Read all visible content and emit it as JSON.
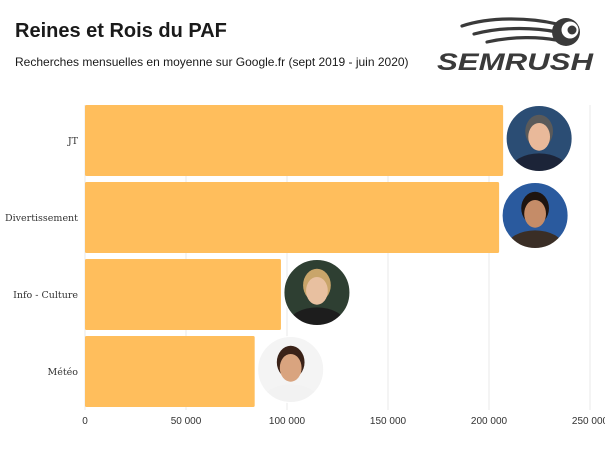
{
  "header": {
    "title": "Reines et Rois du PAF",
    "subtitle": "Recherches mensuelles en moyenne sur Google.fr (sept 2019 - juin 2020)"
  },
  "logo": {
    "text": "SEMRUSH",
    "icon": "semrush-fireball-icon",
    "color": "#3a3a3a"
  },
  "colors": {
    "bar": "#ffbe5c",
    "grid": "#e8e8e8",
    "text": "#333333"
  },
  "chart_data": {
    "type": "bar",
    "orientation": "horizontal",
    "categories": [
      "JT",
      "Divertissement",
      "Info - Culture",
      "Météo"
    ],
    "values": [
      207000,
      205000,
      97000,
      84000
    ],
    "xlim": [
      0,
      250000
    ],
    "xticks": [
      0,
      50000,
      100000,
      150000,
      200000,
      250000
    ],
    "xtick_labels": [
      "0",
      "50 000",
      "100 000",
      "150 000",
      "200 000",
      "250 000"
    ],
    "grid": "vertical",
    "avatars": [
      "anchorman-portrait",
      "entertainer-portrait",
      "journalist-portrait",
      "weather-presenter-portrait"
    ]
  }
}
